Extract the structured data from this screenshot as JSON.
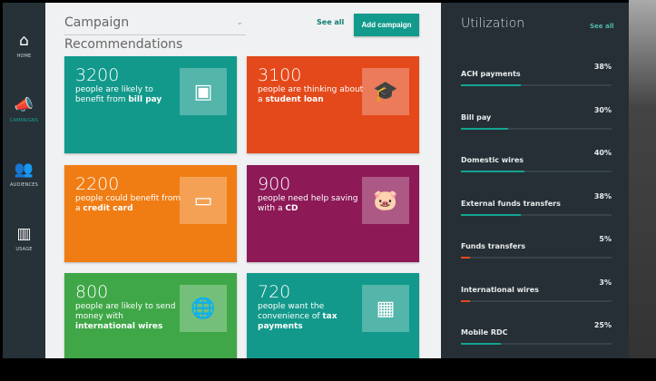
{
  "sidebar": {
    "items": [
      {
        "label": "HOME",
        "icon": "home-icon",
        "glyph": "⌂"
      },
      {
        "label": "CAMPAIGNS",
        "icon": "megaphone-icon",
        "glyph": "📣",
        "active": true
      },
      {
        "label": "AUDIENCES",
        "icon": "people-icon",
        "glyph": "👥"
      },
      {
        "label": "USAGE",
        "icon": "bar-chart-icon",
        "glyph": "▥"
      }
    ]
  },
  "main": {
    "title": "Campaign Recommendations",
    "see_all": "See all",
    "add_campaign": "Add campaign",
    "cards": [
      {
        "num": "3200",
        "pre": "people are likely to benefit from ",
        "bold": "bill pay",
        "color": "#12998b",
        "icon": "wallet-icon",
        "glyph": "▣"
      },
      {
        "num": "3100",
        "pre": "people are thinking about a ",
        "bold": "student loan",
        "color": "#e4491b",
        "icon": "graduation-cap-icon",
        "glyph": "🎓"
      },
      {
        "num": "2200",
        "pre": "people could benefit from a ",
        "bold": "credit card",
        "color": "#f07d14",
        "icon": "credit-card-icon",
        "glyph": "▭"
      },
      {
        "num": "900",
        "pre": "people need help saving with a ",
        "bold": "CD",
        "color": "#8d1957",
        "icon": "piggy-bank-icon",
        "glyph": "🐷"
      },
      {
        "num": "800",
        "pre": "people are likely to send money with ",
        "bold": "international wires",
        "color": "#3fa747",
        "icon": "globe-icon",
        "glyph": "🌐"
      },
      {
        "num": "720",
        "pre": "people want the convenience of ",
        "bold": "tax payments",
        "color": "#12998b",
        "icon": "calculator-icon",
        "glyph": "▦"
      }
    ]
  },
  "utilization": {
    "title": "Utilization",
    "see_all": "See all",
    "colors": {
      "normal": "#14a392",
      "low": "#e4491b"
    },
    "items": [
      {
        "name": "ACH payments",
        "value": "38%",
        "pct": 38
      },
      {
        "name": "Bill pay",
        "value": "30%",
        "pct": 30
      },
      {
        "name": "Domestic wires",
        "value": "40%",
        "pct": 40
      },
      {
        "name": "External funds transfers",
        "value": "38%",
        "pct": 38
      },
      {
        "name": "Funds transfers",
        "value": "5%",
        "pct": 5,
        "low": true
      },
      {
        "name": "International wires",
        "value": "3%",
        "pct": 3,
        "low": true
      },
      {
        "name": "Mobile RDC",
        "value": "25%",
        "pct": 25
      }
    ]
  }
}
